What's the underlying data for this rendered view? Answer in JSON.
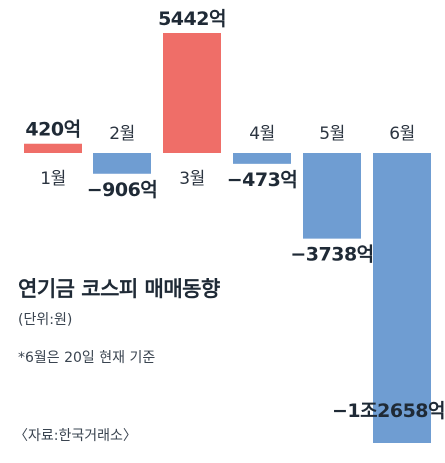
{
  "chart_data": {
    "type": "bar",
    "title": "연기금 코스피 매매동향",
    "unit": "(단위:원)",
    "note": "*6월은 20일 현재 기준",
    "source": "〈자료:한국거래소〉",
    "categories": [
      "1월",
      "2월",
      "3월",
      "4월",
      "5월",
      "6월"
    ],
    "values": [
      420,
      -906,
      5442,
      -473,
      -3738,
      -12658
    ],
    "value_labels": [
      "420억",
      "−906억",
      "5442억",
      "−473억",
      "−3738억",
      "−1조2658억"
    ],
    "colors": {
      "positive": "#ef6e68",
      "negative": "#6f9dd2"
    }
  }
}
